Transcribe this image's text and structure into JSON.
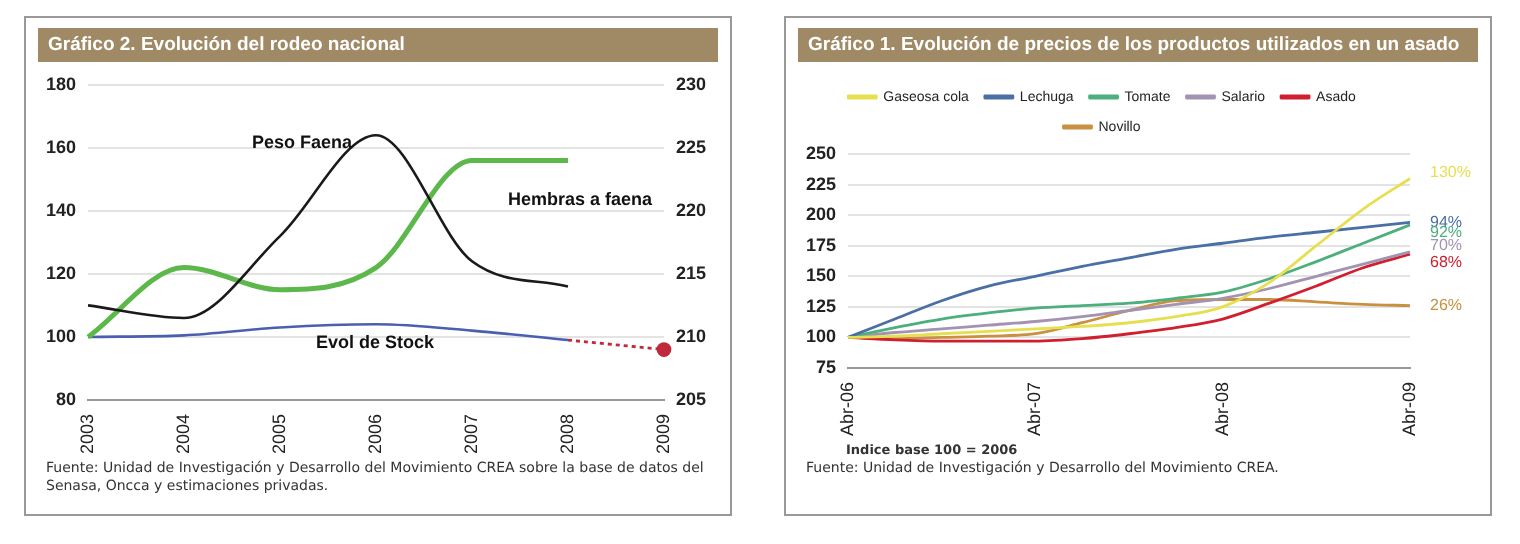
{
  "chart_data": [
    {
      "type": "line",
      "title": "Gráfico 2. Evolución del rodeo nacional",
      "categories": [
        "2003",
        "2004",
        "2005",
        "2006",
        "2007",
        "2008",
        "2009"
      ],
      "series": [
        {
          "name": "Peso Faena",
          "color": "#1a1a1a",
          "axis": "y2",
          "values": [
            212.5,
            211.5,
            218,
            226,
            216,
            214,
            null
          ]
        },
        {
          "name": "Hembras a faena",
          "color": "#5cb84a",
          "values": [
            100,
            122,
            115,
            122,
            156,
            156,
            null
          ]
        },
        {
          "name": "Evol de Stock",
          "color": "#4a5fb0",
          "values": [
            100,
            100.5,
            103,
            104,
            102,
            99,
            null
          ]
        },
        {
          "color": "#c0293b",
          "line_style": "dotted",
          "marker": "circle",
          "values": [
            null,
            null,
            null,
            null,
            null,
            99,
            96
          ]
        }
      ],
      "ylim": [
        80,
        180
      ],
      "yticks": [
        80,
        100,
        120,
        140,
        160,
        180
      ],
      "y2lim": [
        205,
        230
      ],
      "y2ticks": [
        205,
        210,
        215,
        220,
        225,
        230
      ],
      "grid": "y",
      "legend": false,
      "marker": "none",
      "annotations": [
        "Fuente: Unidad de Investigación y Desarrollo del Movimiento CREA sobre la base de datos del Senasa, Oncca y estimaciones privadas."
      ]
    },
    {
      "type": "line",
      "title": "Gráfico 1. Evolución de precios de los productos utilizados en un asado",
      "categories": [
        "Abr-06",
        null,
        null,
        null,
        "Abr-07",
        null,
        null,
        null,
        "Abr-08",
        null,
        null,
        null,
        "Abr-09"
      ],
      "series": [
        {
          "name": "Gaseosa cola",
          "color": "#e6df4f",
          "values": [
            100,
            101,
            103,
            105,
            107,
            109,
            112,
            117,
            125,
            145,
            175,
            205,
            230
          ]
        },
        {
          "name": "Lechuga",
          "color": "#4a6fa5",
          "values": [
            100,
            115,
            130,
            142,
            150,
            158,
            165,
            172,
            177,
            182,
            186,
            190,
            194
          ]
        },
        {
          "name": "Tomate",
          "color": "#4caf7d",
          "values": [
            100,
            108,
            115,
            120,
            124,
            126,
            128,
            132,
            137,
            148,
            162,
            177,
            192
          ]
        },
        {
          "name": "Salario",
          "color": "#a393b3",
          "values": [
            100,
            104,
            107,
            110,
            113,
            117,
            122,
            127,
            132,
            140,
            150,
            160,
            170
          ]
        },
        {
          "name": "Asado",
          "color": "#d02030",
          "values": [
            100,
            98,
            97,
            97,
            97,
            99,
            103,
            108,
            115,
            128,
            142,
            157,
            168
          ]
        },
        {
          "name": "Novillo",
          "color": "#c89040",
          "values": [
            100,
            99,
            100,
            101,
            103,
            112,
            122,
            130,
            131,
            131,
            129,
            127,
            126
          ]
        }
      ],
      "ylim": [
        75,
        250
      ],
      "yticks": [
        75,
        100,
        125,
        150,
        175,
        200,
        225,
        250
      ],
      "grid": "y",
      "legend": "top",
      "marker": "none",
      "annotations": [
        {
          "text": "130%",
          "x": "Abr-09",
          "y": 230
        },
        {
          "text": "94%",
          "x": "Abr-09",
          "y": 194
        },
        {
          "text": "92%",
          "x": "Abr-09",
          "y": 192
        },
        {
          "text": "70%",
          "x": "Abr-09",
          "y": 170
        },
        {
          "text": "68%",
          "x": "Abr-09",
          "y": 168
        },
        {
          "text": "26%",
          "x": "Abr-09",
          "y": 126
        },
        "Indice base 100 = 2006",
        "Fuente: Unidad de Investigación y Desarrollo del Movimiento CREA."
      ]
    }
  ]
}
